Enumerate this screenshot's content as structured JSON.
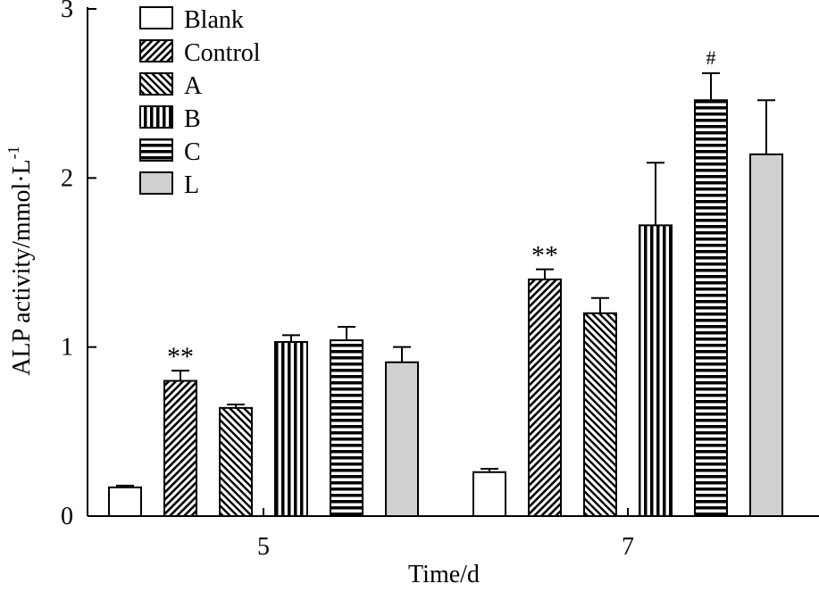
{
  "chart_data": {
    "type": "bar",
    "title": "",
    "xlabel": "Time/d",
    "ylabel": "ALP activity/mmol·L",
    "ylabel_superscript": "-1",
    "ylim": [
      0,
      3
    ],
    "yticks": [
      "0",
      "1",
      "2",
      "3"
    ],
    "categories": [
      "5",
      "7"
    ],
    "grid": false,
    "legend_position": "top-left",
    "series": [
      {
        "name": "Blank",
        "pattern": "blank",
        "fill": "#ffffff",
        "values": [
          0.17,
          0.26
        ],
        "errors": [
          0.01,
          0.02
        ],
        "annotations": [
          "",
          ""
        ]
      },
      {
        "name": "Control",
        "pattern": "diag-right",
        "fill": "#000000",
        "values": [
          0.8,
          1.4
        ],
        "errors": [
          0.06,
          0.06
        ],
        "annotations": [
          "**",
          "**"
        ]
      },
      {
        "name": "A",
        "pattern": "diag-left",
        "fill": "#000000",
        "values": [
          0.64,
          1.2
        ],
        "errors": [
          0.02,
          0.09
        ],
        "annotations": [
          "",
          ""
        ]
      },
      {
        "name": "B",
        "pattern": "vertical",
        "fill": "#000000",
        "values": [
          1.03,
          1.72
        ],
        "errors": [
          0.04,
          0.37
        ],
        "annotations": [
          "",
          ""
        ]
      },
      {
        "name": "C",
        "pattern": "horizontal",
        "fill": "#000000",
        "values": [
          1.04,
          2.46
        ],
        "errors": [
          0.08,
          0.16
        ],
        "annotations": [
          "",
          "#"
        ]
      },
      {
        "name": "L",
        "pattern": "solid",
        "fill": "#d0d0d0",
        "values": [
          0.91,
          2.14
        ],
        "errors": [
          0.09,
          0.32
        ],
        "annotations": [
          "",
          ""
        ]
      }
    ]
  }
}
